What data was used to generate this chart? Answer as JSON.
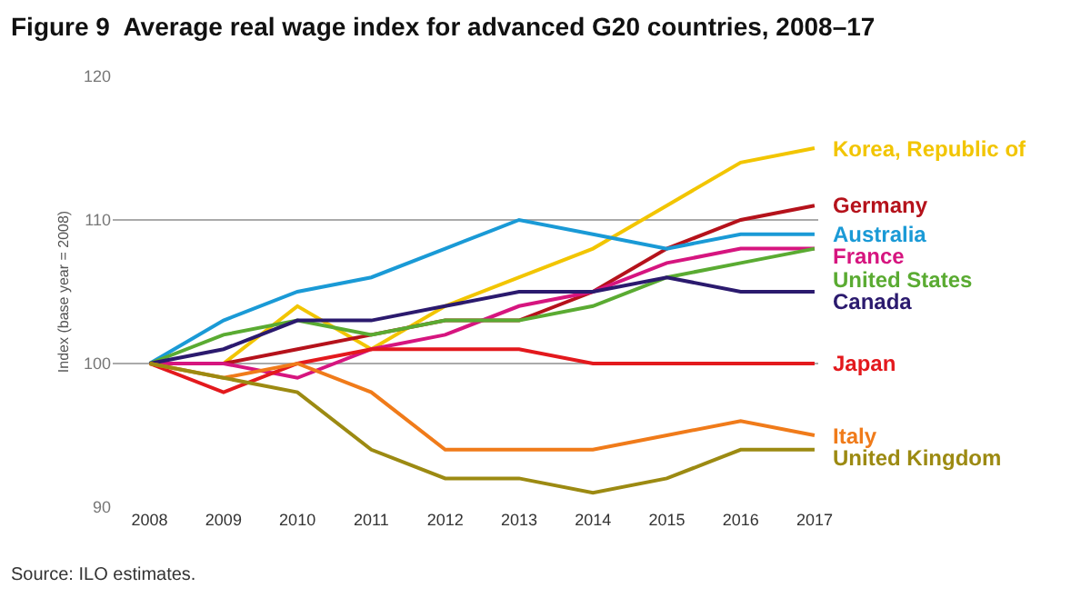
{
  "chart_data": {
    "type": "line",
    "title": "Figure 9  Average real wage index for advanced G20 countries, 2008–17",
    "ylabel": "Index (base year = 2008)",
    "annotations": [
      "Source: ILO estimates."
    ],
    "categories": [
      "2008",
      "2009",
      "2010",
      "2011",
      "2012",
      "2013",
      "2014",
      "2015",
      "2016",
      "2017"
    ],
    "series": [
      {
        "name": "Korea, Republic of",
        "color": "#f2c500",
        "values": [
          100,
          100,
          104,
          101,
          104,
          106,
          108,
          111,
          114,
          115
        ]
      },
      {
        "name": "Germany",
        "color": "#b5121b",
        "values": [
          100,
          100,
          101,
          102,
          103,
          103,
          105,
          108,
          110,
          111
        ]
      },
      {
        "name": "Australia",
        "color": "#1a9ad6",
        "values": [
          100,
          103,
          105,
          106,
          108,
          110,
          109,
          108,
          109,
          109
        ]
      },
      {
        "name": "France",
        "color": "#d6157f",
        "values": [
          100,
          100,
          99,
          101,
          102,
          104,
          105,
          107,
          108,
          108
        ]
      },
      {
        "name": "United States",
        "color": "#5aab32",
        "values": [
          100,
          102,
          103,
          102,
          103,
          103,
          104,
          106,
          107,
          108
        ]
      },
      {
        "name": "Canada",
        "color": "#2b1a6e",
        "values": [
          100,
          101,
          103,
          103,
          104,
          105,
          105,
          106,
          105,
          105
        ]
      },
      {
        "name": "Japan",
        "color": "#e3191d",
        "values": [
          100,
          98,
          100,
          101,
          101,
          101,
          100,
          100,
          100,
          100
        ]
      },
      {
        "name": "Italy",
        "color": "#f07b1a",
        "values": [
          100,
          99,
          100,
          98,
          94,
          94,
          94,
          95,
          96,
          95
        ]
      },
      {
        "name": "United Kingdom",
        "color": "#9c8a12",
        "values": [
          100,
          99,
          98,
          94,
          92,
          92,
          91,
          92,
          94,
          94
        ]
      }
    ],
    "ylim": [
      90,
      120
    ],
    "yticks": [
      90,
      100,
      110,
      120
    ],
    "grid": "y",
    "legend": false,
    "line_style": "solid",
    "marker": "none"
  }
}
